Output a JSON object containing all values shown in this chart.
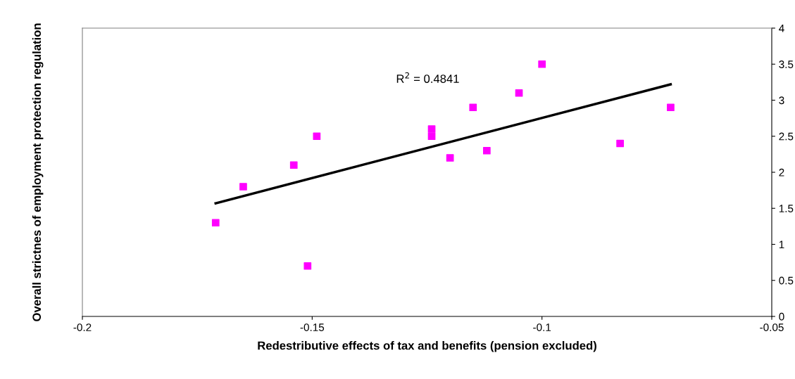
{
  "chart_data": {
    "type": "scatter",
    "xlabel": "Redestributive effects of tax and benefits (pension excluded)",
    "ylabel": "Overall strictnes of employment protection regulation",
    "annotations": [
      "R$^{2}$ = 0.4841"
    ],
    "xlim": [
      -0.2,
      -0.05
    ],
    "xticks": [
      -0.2,
      -0.15,
      -0.1,
      -0.05
    ],
    "ylim": [
      0,
      4
    ],
    "yticks": [
      0,
      0.5,
      1,
      1.5,
      2,
      2.5,
      3,
      3.5,
      4
    ],
    "grid": false,
    "legend": false,
    "marker": "square",
    "series": [
      {
        "color": "#ff00ff",
        "x": [
          -0.171,
          -0.165,
          -0.154,
          -0.151,
          -0.149,
          -0.124,
          -0.124,
          -0.12,
          -0.115,
          -0.112,
          -0.105,
          -0.1,
          -0.083,
          -0.072
        ],
        "values": [
          1.3,
          1.8,
          2.1,
          0.7,
          2.5,
          2.6,
          2.5,
          2.2,
          2.9,
          2.3,
          3.1,
          3.5,
          2.4,
          2.9
        ]
      },
      {
        "type": "line",
        "color": "#000000",
        "line_style": "solid",
        "marker": "none",
        "x": [
          -0.171,
          -0.072
        ],
        "values": [
          1.57,
          3.22
        ]
      }
    ]
  }
}
